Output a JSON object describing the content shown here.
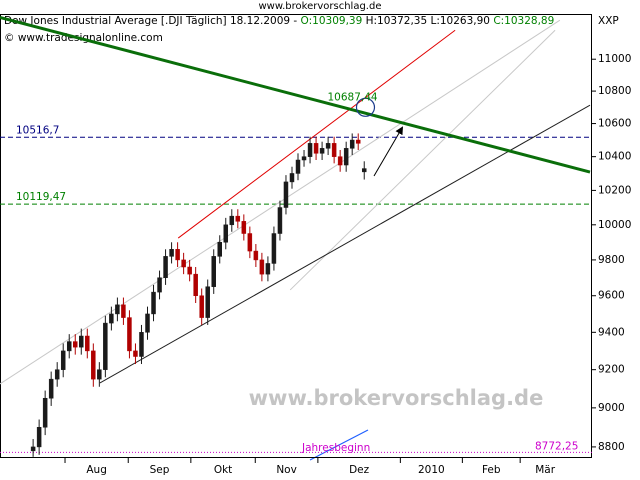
{
  "chart_data": {
    "type": "candlestick",
    "source": "www.brokervorschlag.de",
    "title": {
      "name": "Dow Jones Industrial Average [.DJI  Täglich] 18.12.2009 - ",
      "open": "O:10309,39",
      "high_low": " H:10372,35 L:10263,90 ",
      "close": "C:10328,89"
    },
    "copyright": "© www.tradesignalonline.com",
    "symbol": "XXP",
    "watermark": "www.brokervorschlag.de",
    "year_start_label": "Jahresbeginn",
    "open": [
      8780,
      8800,
      8900,
      9050,
      9150,
      9200,
      9300,
      9350,
      9320,
      9380,
      9300,
      9150,
      9200,
      9450,
      9500,
      9550,
      9480,
      9300,
      9270,
      9400,
      9500,
      9620,
      9700,
      9820,
      9860,
      9800,
      9760,
      9720,
      9600,
      9480,
      9650,
      9820,
      9900,
      10000,
      10050,
      10020,
      9950,
      9850,
      9800,
      9720,
      9780,
      9950,
      10100,
      10250,
      10300,
      10380,
      10400,
      10480,
      10420,
      10450,
      10480,
      10400,
      10350,
      10450,
      10500,
      10309.39
    ],
    "high": [
      8840,
      8940,
      9090,
      9190,
      9240,
      9340,
      9390,
      9390,
      9420,
      9420,
      9340,
      9240,
      9490,
      9540,
      9590,
      9590,
      9520,
      9340,
      9440,
      9540,
      9660,
      9740,
      9860,
      9900,
      9900,
      9840,
      9800,
      9760,
      9640,
      9690,
      9860,
      9940,
      10040,
      10090,
      10090,
      10060,
      9990,
      9890,
      9840,
      9820,
      9990,
      10140,
      10290,
      10340,
      10420,
      10440,
      10520,
      10520,
      10490,
      10520,
      10520,
      10440,
      10490,
      10540,
      10540,
      10372.35
    ],
    "low": [
      8750,
      8760,
      8860,
      9010,
      9110,
      9160,
      9260,
      9280,
      9280,
      9260,
      9110,
      9110,
      9160,
      9410,
      9460,
      9440,
      9260,
      9230,
      9230,
      9360,
      9460,
      9580,
      9660,
      9780,
      9760,
      9720,
      9680,
      9560,
      9440,
      9440,
      9610,
      9780,
      9860,
      9960,
      9980,
      9910,
      9810,
      9760,
      9680,
      9680,
      9740,
      9910,
      10060,
      10210,
      10260,
      10340,
      10360,
      10380,
      10380,
      10410,
      10360,
      10310,
      10310,
      10410,
      10440,
      10263.9
    ],
    "close": [
      8800,
      8900,
      9050,
      9150,
      9200,
      9300,
      9350,
      9320,
      9380,
      9300,
      9150,
      9200,
      9450,
      9500,
      9550,
      9480,
      9300,
      9270,
      9400,
      9500,
      9620,
      9700,
      9820,
      9860,
      9800,
      9760,
      9720,
      9600,
      9480,
      9650,
      9820,
      9900,
      10000,
      10050,
      10020,
      9950,
      9850,
      9800,
      9720,
      9780,
      9950,
      10100,
      10250,
      10300,
      10380,
      10400,
      10480,
      10420,
      10450,
      10480,
      10400,
      10350,
      10450,
      10500,
      10480,
      10328.89
    ],
    "up_color": "#1a1a1a",
    "down_color": "#b00000",
    "log_scale": true,
    "ylim": [
      8744,
      11290
    ],
    "yticks": [
      8800,
      9000,
      9200,
      9400,
      9600,
      9800,
      10000,
      10200,
      10400,
      10600,
      10800,
      11000
    ],
    "xlim": [
      -5.5,
      92.5
    ],
    "xticks": [
      {
        "value": 5.3,
        "label": "Aug"
      },
      {
        "value": 15.8,
        "label": "Sep"
      },
      {
        "value": 26.2,
        "label": "Okt"
      },
      {
        "value": 36.9,
        "label": "Nov"
      },
      {
        "value": 47.3,
        "label": "Dez"
      },
      {
        "value": 61,
        "label": "2010"
      },
      {
        "value": 71.3,
        "label": "Feb"
      },
      {
        "value": 80.9,
        "label": "Mär"
      }
    ],
    "levels": [
      {
        "value": 10516.7,
        "label": "10516,7",
        "color": "#000080"
      },
      {
        "value": 10119.47,
        "label": "10119,47",
        "color": "#008000"
      },
      {
        "value": 8772.25,
        "label": "8772,25",
        "color": "#cc00cc"
      }
    ],
    "trendlines": [
      {
        "points": [
          [
            -5.5,
            9125
          ],
          [
            87.5,
            11250
          ]
        ],
        "color": "#c8c8c8",
        "width": 1
      },
      {
        "points": [
          [
            42.7,
            9632
          ],
          [
            86.7,
            11185
          ]
        ],
        "color": "#c8c8c8",
        "width": 1
      },
      {
        "points": [
          [
            24.1,
            9924
          ],
          [
            70.1,
            11185
          ]
        ],
        "color": "#e00000",
        "width": 1
      },
      {
        "points": [
          [
            11.1,
            9130
          ],
          [
            92.5,
            10713
          ]
        ],
        "color": "#202020",
        "width": 1
      },
      {
        "points": [
          [
            -5.5,
            11268
          ],
          [
            92.5,
            10308
          ]
        ],
        "color": "#0a6e0a",
        "width": 3
      }
    ],
    "crossing": {
      "value": 10687.44,
      "label": "10687,44",
      "color": "#008000"
    }
  }
}
